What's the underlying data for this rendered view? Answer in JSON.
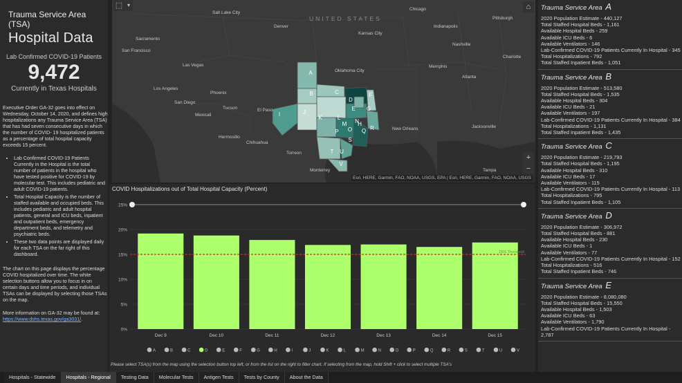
{
  "left": {
    "heading1": "Trauma Service Area (TSA)",
    "heading2": "Hospital Data",
    "kpi_label": "Lab Confirmed COVID-19 Patients",
    "kpi_value": "9,472",
    "kpi_sub": "Currently in Texas Hospitals",
    "intro": "Executive Order GA-32 goes into effect on Wednesday, October 14, 2020, and defines high hospitalizations any Trauma Service Area (TSA) that has had seven consecutive days in which the number of COVID- 19 hospitalized patients as a percentage of total hospital capacity exceeds 15 percent.",
    "bullets": [
      "Lab Confirmed COVID-19 Patients Currently in the Hospital is the total number of patients in the hospital who have tested positive for COVID-19 by molecular test. This includes pediatric and adult COVID-19 patients.",
      "Total Hospital Capacity is the number of staffed available and occupied beds. This includes pediatric and adult hospital patients, general and ICU beds, inpatient and outpatient beds, emergency department beds, and telemetry and psychiatric beds.",
      "These two data points are displayed daily for each TSA on the far right of this dashboard."
    ],
    "chart_explainer": "The chart on this page displays the percentage COVID hospitalized over time. The white selection buttons allow you to focus in on certain days and time periods, and individual TSAs can be displayed by selecting those TSAs on the map.",
    "more_info": "More information on GA-32 may be found at:",
    "more_info_link": "https://www.dshs.texas.gov/ga3031/",
    "more_info_end": "."
  },
  "map": {
    "labels": {
      "united_states": "UNITED STATES",
      "salt_lake": "Salt Lake City",
      "sacramento": "Sacramento",
      "san_francisco": "San Francisco",
      "denver": "Denver",
      "kansas_city": "Kansas City",
      "chicago": "Chicago",
      "indianapolis": "Indianapolis",
      "pittsburgh": "Pittsburgh",
      "las_vegas": "Las Vegas",
      "los_angeles": "Los Angeles",
      "san_diego": "San Diego",
      "phoenix": "Phoenix",
      "tucson": "Tucson",
      "oklahoma_city": "Oklahoma City",
      "nashville": "Nashville",
      "memphis": "Memphis",
      "atlanta": "Atlanta",
      "charlotte": "Charlotte",
      "mexicali": "Mexicali",
      "hermosillo": "Hermosillo",
      "chihuahua": "Chihuahua",
      "torreon": "Torreon",
      "monterrey": "Monterrey",
      "el_paso": "El Paso",
      "new_orleans": "New Orleans",
      "jacksonville": "Jacksonville",
      "tampa": "Tampa"
    },
    "tsa_letters": [
      "A",
      "B",
      "C",
      "D",
      "E",
      "F",
      "G",
      "H",
      "I",
      "J",
      "K",
      "L",
      "M",
      "N",
      "O",
      "P",
      "Q",
      "R",
      "S",
      "T",
      "U",
      "V"
    ],
    "zoom_in": "+",
    "zoom_out": "−",
    "attribution": "Esri, HERE, Garmin, FAO, NOAA, USGS, EPA | Esri, HERE, Garmin, FAO, NOAA, USGS"
  },
  "chart_data": {
    "type": "bar",
    "title": "COVID Hospitalizations out of Total Hospital Capacity (Percent)",
    "categories": [
      "Dec 9",
      "Dec 10",
      "Dec 11",
      "Dec 12",
      "Dec 13",
      "Dec 14",
      "Dec 15"
    ],
    "values": [
      19.2,
      18.8,
      17.9,
      16.9,
      17.0,
      16.5,
      17.4
    ],
    "ylim": [
      0,
      25
    ],
    "yticks": [
      "0%",
      "5%",
      "10%",
      "15%",
      "20%",
      "25%"
    ],
    "threshold": 15,
    "threshold_label": "15% Threshold",
    "bar_color": "#adff6b",
    "threshold_color": "#d9261c",
    "grid": true,
    "xlabel": "",
    "ylabel": ""
  },
  "chart_filters": [
    "A",
    "B",
    "C",
    "D",
    "E",
    "F",
    "G",
    "H",
    "I",
    "J",
    "K",
    "L",
    "M",
    "N",
    "O",
    "P",
    "Q",
    "R",
    "S",
    "T",
    "U",
    "V"
  ],
  "chart_filters_selected": "D",
  "chart_note": "Please select TSA(s) from the map using the selection button top left, or from the list on the right to filter chart. If selecting from the map, hold Shift + click to select multiple TSA's",
  "tsa_header": "Trauma Service Area",
  "tsas": [
    {
      "letter": "A",
      "lines": [
        "2020 Population Estimate - 440,127",
        "Total Staffed Hospital Beds - 1,161",
        "Available Hospital Beds - 259",
        "Available ICU Beds - 6",
        "Available Ventilators - 146",
        "Lab-Confirmed COVID-19 Patients Currently In Hospital - 345",
        "Total Hospitalizations - 792",
        "Total Staffed Inpatient Beds - 1,051"
      ]
    },
    {
      "letter": "B",
      "lines": [
        "2020 Population Estimate - 513,580",
        "Total Staffed Hospital Beds - 1,535",
        "Available Hospital Beds - 304",
        "Available ICU Beds - 21",
        "Available Ventilators - 197",
        "Lab-Confirmed COVID-19 Patients Currently In Hospital - 384",
        "Total Hospitalizations - 1,131",
        "Total Staffed Inpatient Beds - 1,435"
      ]
    },
    {
      "letter": "C",
      "lines": [
        "2020 Population Estimate - 219,793",
        "Total Staffed Hospital Beds - 1,195",
        "Available Hospital Beds - 310",
        "Available ICU Beds - 17",
        "Available Ventilators - 115",
        "Lab-Confirmed COVID-19 Patients Currently In Hospital - 113",
        "Total Hospitalizations - 795",
        "Total Staffed Inpatient Beds - 1,105"
      ]
    },
    {
      "letter": "D",
      "lines": [
        "2020 Population Estimate - 306,972",
        "Total Staffed Hospital Beds - 881",
        "Available Hospital Beds - 230",
        "Available ICU Beds - 1",
        "Available Ventilators - 77",
        "Lab-Confirmed COVID-19 Patients Currently In Hospital - 152",
        "Total Hospitalizations - 516",
        "Total Staffed Inpatient Beds - 746"
      ]
    },
    {
      "letter": "E",
      "lines": [
        "2020 Population Estimate - 8,080,080",
        "Total Staffed Hospital Beds - 15,550",
        "Available Hospital Beds - 1,503",
        "Available ICU Beds - 63",
        "Available Ventilators - 1,790",
        "Lab-Confirmed COVID-19 Patients Currently In Hospital - 2,787"
      ]
    }
  ],
  "tabs": [
    "Hospitals - Statewide",
    "Hospitals - Regional",
    "Testing Data",
    "Molecular Tests",
    "Antigen Tests",
    "Tests by County",
    "About the Data"
  ],
  "active_tab": "Hospitals - Regional"
}
